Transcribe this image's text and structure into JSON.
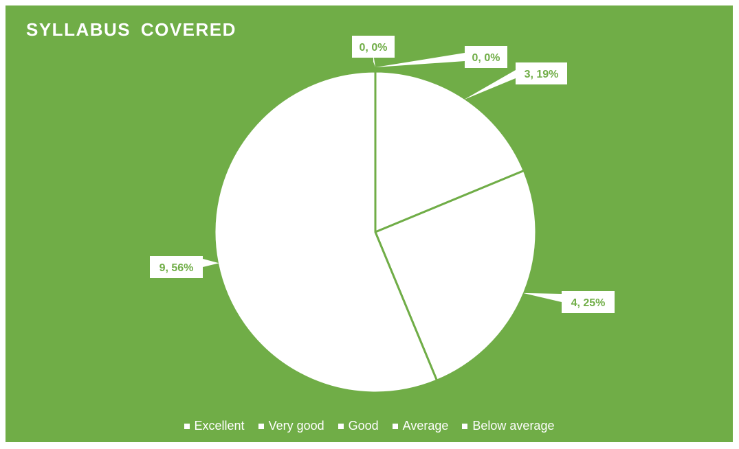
{
  "colors": {
    "background": "#70ad47",
    "slice_fill": "#ffffff",
    "slice_border": "#70ad47",
    "label_text": "#70ad47",
    "title_text": "#ffffff"
  },
  "chart_data": {
    "type": "pie",
    "title": "SYLLABUS  COVERED",
    "categories": [
      "Excellent",
      "Very good",
      "Good",
      "Average",
      "Below average"
    ],
    "values": [
      0,
      0,
      3,
      4,
      9
    ],
    "percentages": [
      "0%",
      "0%",
      "19%",
      "25%",
      "56%"
    ],
    "data_labels": [
      "0, 0%",
      "0, 0%",
      "3, 19%",
      "4, 25%",
      "9, 56%"
    ],
    "legend_position": "bottom",
    "start_angle": "12 o'clock",
    "direction": "clockwise"
  }
}
